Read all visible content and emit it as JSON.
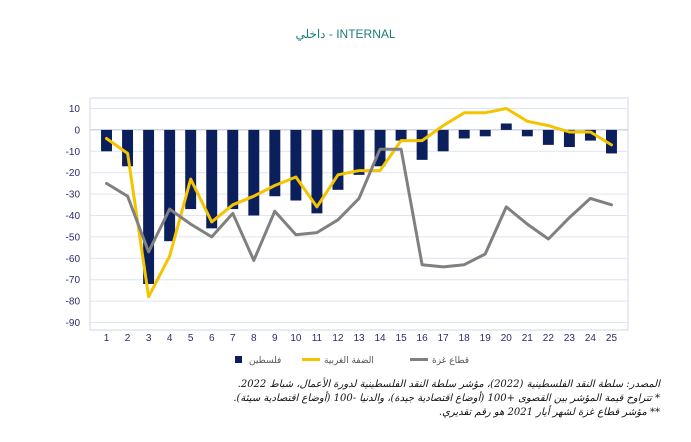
{
  "title": "داخلي - INTERNAL",
  "chart_data": {
    "type": "bar+line",
    "x": [
      1,
      2,
      3,
      4,
      5,
      6,
      7,
      8,
      9,
      10,
      11,
      12,
      13,
      14,
      15,
      16,
      17,
      18,
      19,
      20,
      21,
      22,
      23,
      24,
      25
    ],
    "ylim": [
      -90,
      10
    ],
    "yticks": [
      10,
      0,
      -10,
      -20,
      -30,
      -40,
      -50,
      -60,
      -70,
      -80,
      -90
    ],
    "grid": true,
    "legend_position": "bottom",
    "series": [
      {
        "name": "فلسطين",
        "type": "bar",
        "color": "#0b1f5c",
        "values": [
          -10,
          -17,
          -72,
          -52,
          -37,
          -46,
          -37,
          -40,
          -31,
          -33,
          -39,
          -28,
          -21,
          -17,
          -5,
          -14,
          -10,
          -4,
          -3,
          3,
          -3,
          -7,
          -8,
          -5,
          -11
        ]
      },
      {
        "name": "الضفة الغربية",
        "type": "line",
        "color": "#f5c400",
        "values": [
          -4,
          -11,
          -78,
          -59,
          -23,
          -43,
          -35,
          -31,
          -26,
          -22,
          -36,
          -21,
          -19,
          -19,
          -5,
          -5,
          2,
          8,
          8,
          10,
          4,
          2,
          -1,
          -1,
          -7
        ]
      },
      {
        "name": "قطاع غزة",
        "type": "line",
        "color": "#808080",
        "values": [
          -25,
          -31,
          -57,
          -37,
          -44,
          -50,
          -39,
          -61,
          -38,
          -49,
          -48,
          -42,
          -32,
          -9,
          -9,
          -63,
          -64,
          -63,
          -58,
          -36,
          -44,
          -51,
          -41,
          -32,
          -35
        ]
      }
    ]
  },
  "notes": {
    "source": "المصدر: سلطة النقد الفلسطينية (2022)، مؤشر سلطة النقد الفلسطينية لدورة الأعمال، شباط 2022.",
    "note1": "* تتراوح قيمة المؤشر بين القصوى +100 (أوضاع اقتصادية جيدة)، والدنيا -100 (أوضاع اقتصادية سيئة).",
    "note2": "** مؤشر قطاع غزة لشهر أيار 2021 هو رقم تقديري."
  }
}
